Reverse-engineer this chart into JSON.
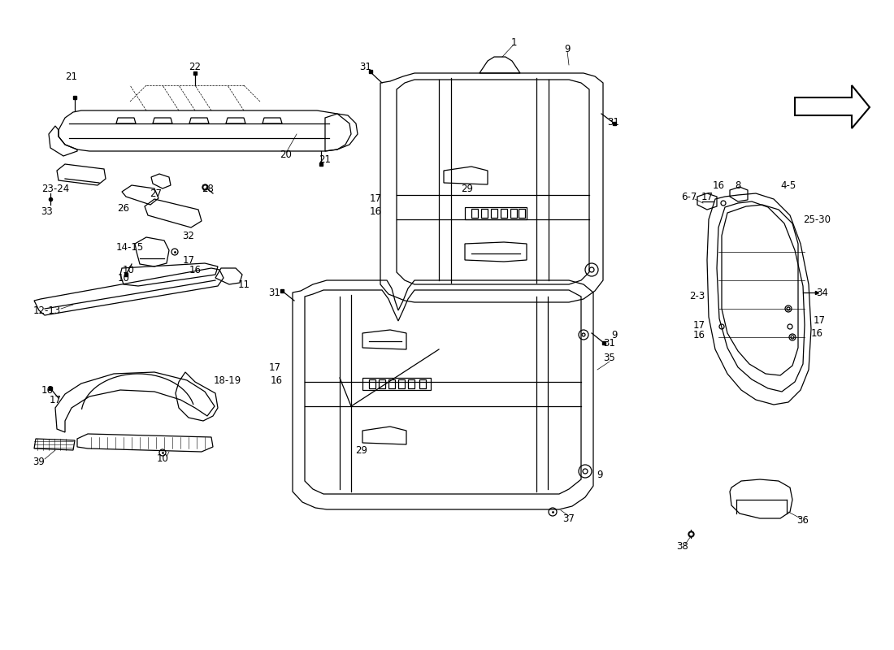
{
  "bg_color": "#ffffff",
  "line_color": "#000000",
  "font_size": 8.5,
  "lw": 0.9
}
